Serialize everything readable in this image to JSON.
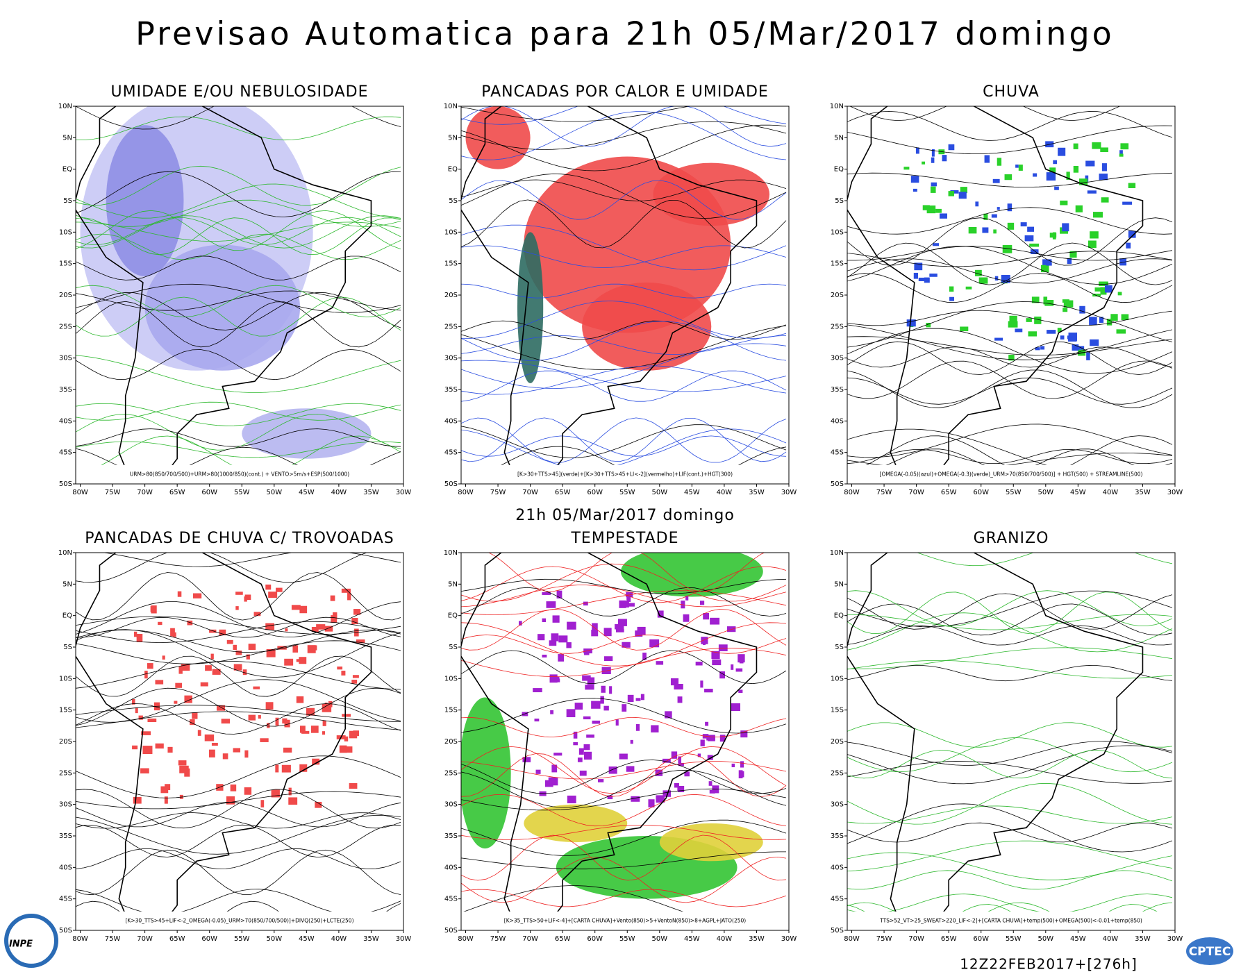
{
  "header": {
    "title": "Previsao Automatica  para 21h 05/Mar/2017 domingo",
    "subtitle": "21h 05/Mar/2017 domingo",
    "run": "12Z22FEB2017+[276h]"
  },
  "axes": {
    "lat": [
      "10N",
      "5N",
      "EQ",
      "5S",
      "10S",
      "15S",
      "20S",
      "25S",
      "30S",
      "35S",
      "40S",
      "45S",
      "50S"
    ],
    "lon": [
      "80W",
      "75W",
      "70W",
      "65W",
      "60W",
      "55W",
      "50W",
      "45W",
      "40W",
      "35W",
      "30W"
    ]
  },
  "panels": [
    {
      "title": "UMIDADE E/OU NEBULOSIDADE",
      "caption": "URM>80(850/700/500)+URM>80(1000/850)(cont.) + VENTO>5m/s+ESP(500/1000)"
    },
    {
      "title": "PANCADAS POR CALOR E UMIDADE",
      "caption": "[K>30+TTS>45](verde)+[K>30+TTS>45+LI<-2](vermelho)+LIF(cont.)+HGT(300)"
    },
    {
      "title": "CHUVA",
      "caption": "[OMEGA(-0.05)(azul)+OMEGA(-0.3)(verde)_URM>70(850/700/500)] + HGT(500) + STREAMLINE(500)"
    },
    {
      "title": "PANCADAS DE CHUVA C/ TROVOADAS",
      "caption": "[K>30_TTS>45+LIF<-2_OMEGA(-0.05)_URM>70(850/700/500)]+DIVQ(250)+LCTE(250)"
    },
    {
      "title": "TEMPESTADE",
      "caption": "[K>35_TTS>50+LIF<-4]+[CARTA CHUVA]+Vento(850)>5+VentoN(850)>8+AGPL+JATO(250)"
    },
    {
      "title": "GRANIZO",
      "caption": "TTS>52_VT>25_SWEAT>220_LIF<-2]+[CARTA CHUVA]+temp(500)+OMEGA(500)<-0.01+temp(850)"
    }
  ],
  "logos": {
    "left": "INPE",
    "right": "CPTEC"
  }
}
